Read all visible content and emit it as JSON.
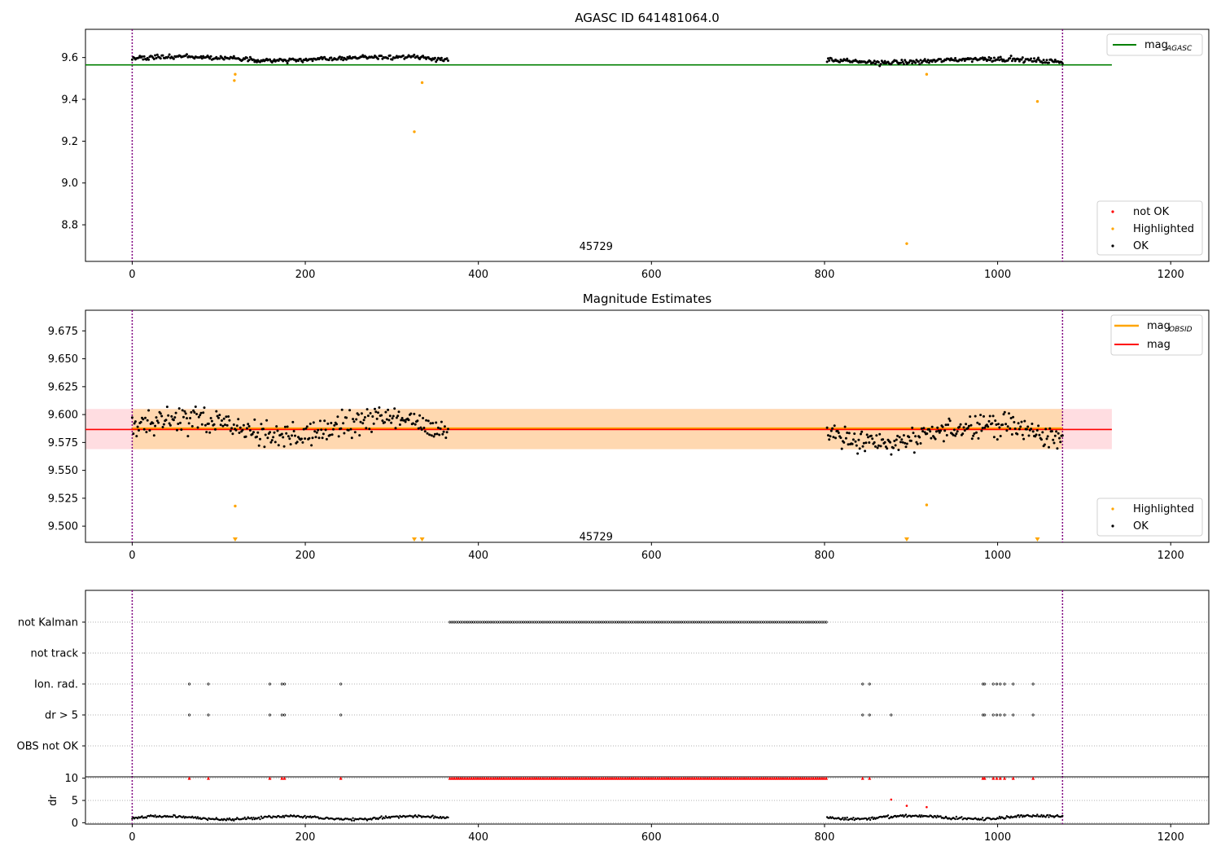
{
  "colors": {
    "ok": "#000000",
    "highlighted": "#ffa500",
    "not_ok": "#ff0000",
    "mag_agasc": "#008000",
    "mag_obsid": "#ffa500",
    "mag": "#ff0000",
    "band_obsid": "#ffd8b0",
    "band_mag": "#ffdde1",
    "boundary": "#800080"
  },
  "chart_data": [
    {
      "type": "scatter",
      "title": "AGASC ID 641481064.0",
      "xlim": [
        -54,
        1244
      ],
      "ylim": [
        8.625,
        9.735
      ],
      "xticks": [
        "0",
        "200",
        "400",
        "600",
        "800",
        "1000",
        "1200"
      ],
      "yticks": [
        "8.8",
        "9.0",
        "9.2",
        "9.4",
        "9.6"
      ],
      "grid": false,
      "reference_line": {
        "name": "mag_AGASC",
        "y": 9.565,
        "x_range": [
          -54,
          1132
        ]
      },
      "obs_boundaries": [
        0,
        1075
      ],
      "annotation": {
        "text": "45729",
        "x": 536,
        "y": 8.68
      },
      "legend_lines": [
        {
          "name": "mag",
          "sub": "AGASC",
          "color_key": "mag_agasc"
        }
      ],
      "legend_points": [
        {
          "name": "not OK",
          "color_key": "not_ok"
        },
        {
          "name": "Highlighted",
          "color_key": "highlighted"
        },
        {
          "name": "OK",
          "color_key": "ok"
        }
      ],
      "ok_segments": [
        {
          "x0": 0,
          "x1": 365,
          "n": 290,
          "center": 9.595,
          "spread": 0.035
        },
        {
          "x0": 803,
          "x1": 1075,
          "n": 225,
          "center": 9.585,
          "spread": 0.035
        }
      ],
      "highlighted_points": [
        {
          "x": 118,
          "y": 9.49
        },
        {
          "x": 119,
          "y": 9.52
        },
        {
          "x": 326,
          "y": 9.245
        },
        {
          "x": 335,
          "y": 9.48
        },
        {
          "x": 895,
          "y": 8.71
        },
        {
          "x": 918,
          "y": 9.52
        },
        {
          "x": 1046,
          "y": 9.39
        }
      ]
    },
    {
      "type": "scatter",
      "title": "Magnitude Estimates",
      "xlim": [
        -54,
        1244
      ],
      "ylim": [
        9.4855,
        9.6935
      ],
      "xticks": [
        "0",
        "200",
        "400",
        "600",
        "800",
        "1000",
        "1200"
      ],
      "yticks": [
        "9.500",
        "9.525",
        "9.550",
        "9.575",
        "9.600",
        "9.625",
        "9.650",
        "9.675"
      ],
      "grid": false,
      "obs_boundaries": [
        0,
        1075
      ],
      "annotation": {
        "text": "45729",
        "x": 536,
        "y": 9.4875
      },
      "mag_obsid": {
        "y": 9.587,
        "band": [
          9.569,
          9.605
        ],
        "x_range": [
          0,
          1075
        ]
      },
      "mag": {
        "y": 9.587,
        "band": [
          9.569,
          9.605
        ],
        "x_range": [
          -54,
          1132
        ]
      },
      "legend_lines": [
        {
          "name": "mag",
          "sub": "OBSID",
          "color_key": "mag_obsid"
        },
        {
          "name": "mag",
          "sub": "",
          "color_key": "mag"
        }
      ],
      "legend_points": [
        {
          "name": "Highlighted",
          "color_key": "highlighted"
        },
        {
          "name": "OK",
          "color_key": "ok"
        }
      ],
      "ok_segments": [
        {
          "x0": 0,
          "x1": 365,
          "n": 290,
          "center": 9.588,
          "spread": 0.035
        },
        {
          "x0": 803,
          "x1": 1075,
          "n": 225,
          "center": 9.583,
          "spread": 0.035
        }
      ],
      "highlighted_points": [
        {
          "x": 119,
          "y": 9.518
        },
        {
          "x": 918,
          "y": 9.519
        }
      ],
      "highlighted_markers_at_bottom": [
        119,
        326,
        335,
        895,
        1046
      ]
    },
    {
      "type": "scatter",
      "title": "",
      "xlim": [
        -54,
        1244
      ],
      "xticks": [
        "0",
        "200",
        "400",
        "600",
        "800",
        "1000",
        "1200"
      ],
      "obs_boundaries": [
        0,
        1075
      ],
      "category_rows": [
        "not Kalman",
        "not track",
        "Ion. rad.",
        "dr > 5",
        "OBS not OK"
      ],
      "flags": {
        "not Kalman": {
          "ranges": [
            [
              367,
              802
            ]
          ]
        },
        "not track": {
          "points": []
        },
        "Ion. rad.": {
          "points": [
            66,
            88,
            159,
            173,
            176,
            241,
            844,
            852,
            983,
            985,
            995,
            999,
            1003,
            1008,
            1018,
            1041
          ]
        },
        "dr > 5": {
          "points": [
            66,
            88,
            159,
            173,
            176,
            241,
            844,
            852,
            877,
            983,
            985,
            995,
            999,
            1003,
            1008,
            1018,
            1041
          ]
        },
        "OBS not OK": {
          "points": []
        }
      }
    },
    {
      "type": "scatter",
      "title": "",
      "xlim": [
        -54,
        1244
      ],
      "ylim": [
        -0.3,
        10.3
      ],
      "ylabel": "dr",
      "yticks": [
        "0",
        "5",
        "10"
      ],
      "xticks": [
        "0",
        "200",
        "400",
        "600",
        "800",
        "1000",
        "1200"
      ],
      "obs_boundaries": [
        0,
        1075
      ],
      "dr_segments": [
        {
          "x0": 0,
          "x1": 365,
          "n": 290,
          "center": 1.1,
          "spread": 0.5
        },
        {
          "x0": 803,
          "x1": 1075,
          "n": 225,
          "center": 1.2,
          "spread": 0.5
        }
      ],
      "dr_red_saturated": {
        "ranges": [
          [
            367,
            802
          ]
        ],
        "points": [
          66,
          88,
          159,
          173,
          176,
          241,
          844,
          852,
          983,
          985,
          995,
          999,
          1003,
          1008,
          1018,
          1041
        ]
      },
      "dr_red_points": [
        {
          "x": 877,
          "y": 5.2
        },
        {
          "x": 895,
          "y": 3.8
        },
        {
          "x": 918,
          "y": 3.5
        }
      ]
    }
  ]
}
